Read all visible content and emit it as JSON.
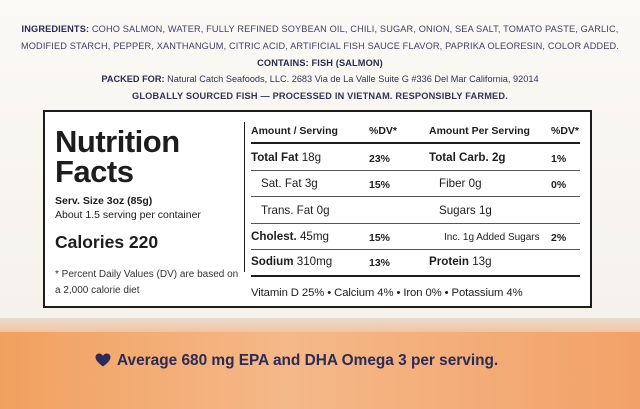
{
  "ingredients": {
    "label": "INGREDIENTS:",
    "text": "COHO SALMON, WATER, FULLY REFINED SOYBEAN OIL, CHILI, SUGAR, ONION, SEA SALT, TOMATO PASTE, GARLIC, MODIFIED STARCH, PEPPER, XANTHANGUM, CITRIC ACID, ARTIFICIAL FISH SAUCE FLAVOR, PAPRIKA OLEORESIN, COLOR ADDED.",
    "contains": "CONTAINS: FISH (SALMON)"
  },
  "packed": {
    "label": "PACKED FOR:",
    "text": "Natural Catch Seafoods, LLC. 2683 Via de La Valle Suite G #336 Del Mar California, 92014"
  },
  "origin": "GLOBALLY SOURCED FISH — PROCESSED IN VIETNAM. RESPONSIBLY FARMED.",
  "nutrition": {
    "title_line1": "Nutrition",
    "title_line2": "Facts",
    "serving_size": "Serv. Size 3oz (85g)",
    "servings": "About 1.5 serving per container",
    "calories": "Calories 220",
    "dv_note": "* Percent Daily Values (DV) are based on a 2,000 calorie diet",
    "headers": {
      "amount_serving": "Amount / Serving",
      "dv": "%DV*",
      "amount_per_serving": "Amount Per Serving",
      "dv2": "%DV*"
    },
    "left": {
      "total_fat_label": "Total Fat",
      "total_fat_amount": "18g",
      "total_fat_dv": "23%",
      "sat_fat_label": "Sat. Fat",
      "sat_fat_amount": "3g",
      "sat_fat_dv": "15%",
      "trans_fat_label": "Trans. Fat",
      "trans_fat_amount": "0g",
      "cholest_label": "Cholest.",
      "cholest_amount": "45mg",
      "cholest_dv": "15%",
      "sodium_label": "Sodium",
      "sodium_amount": "310mg",
      "sodium_dv": "13%"
    },
    "right": {
      "carb_label": "Total Carb.",
      "carb_amount": "2g",
      "carb_dv": "1%",
      "fiber_label": "Fiber",
      "fiber_amount": "0g",
      "fiber_dv": "0%",
      "sugars_label": "Sugars",
      "sugars_amount": "1g",
      "added_sugars": "Inc. 1g Added Sugars",
      "added_sugars_dv": "2%",
      "protein_label": "Protein",
      "protein_amount": "13g"
    },
    "vitamins": "Vitamin D 25% • Calcium 4% • Iron 0% • Potassium 4%"
  },
  "band": {
    "omega_text": "Average 680 mg EPA and DHA Omega 3 per serving.",
    "heart_icon": "heart-icon"
  },
  "colors": {
    "text": "#2c2c54",
    "band": "#f5b889"
  }
}
